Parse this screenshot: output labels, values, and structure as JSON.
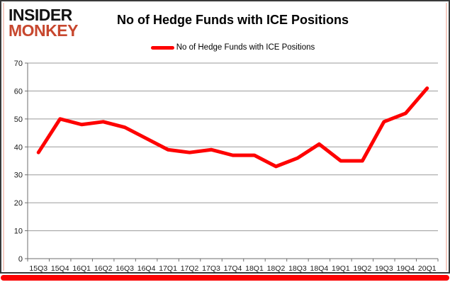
{
  "logo": {
    "line1": "INSIDER",
    "line2": "MONKEY"
  },
  "header": {
    "title": "No of Hedge Funds with ICE Positions"
  },
  "legend": {
    "label": "No of Hedge Funds with ICE Positions"
  },
  "colors": {
    "line": "#fe0000",
    "accent_bar": "#fb0202",
    "logo_red": "#c7472e",
    "grid": "#9a9a9a",
    "axis": "#6e6e6e",
    "tick_text": "#1a1a1a"
  },
  "chart_data": {
    "type": "line",
    "title": "No of Hedge Funds with ICE Positions",
    "xlabel": "",
    "ylabel": "",
    "categories": [
      "15Q3",
      "15Q4",
      "16Q1",
      "16Q2",
      "16Q3",
      "16Q4",
      "17Q1",
      "17Q2",
      "17Q3",
      "17Q4",
      "18Q1",
      "18Q2",
      "18Q3",
      "18Q4",
      "19Q1",
      "19Q2",
      "19Q3",
      "19Q4",
      "20Q1"
    ],
    "series": [
      {
        "name": "No of Hedge Funds with ICE Positions",
        "values": [
          38,
          50,
          48,
          49,
          47,
          43,
          39,
          38,
          39,
          37,
          37,
          33,
          36,
          41,
          35,
          35,
          49,
          52,
          61
        ]
      }
    ],
    "ylim": [
      0,
      70
    ],
    "y_tick_labels": [
      0,
      10,
      20,
      30,
      40,
      50,
      60,
      70
    ],
    "grid": "horizontal",
    "legend_position": "top"
  }
}
